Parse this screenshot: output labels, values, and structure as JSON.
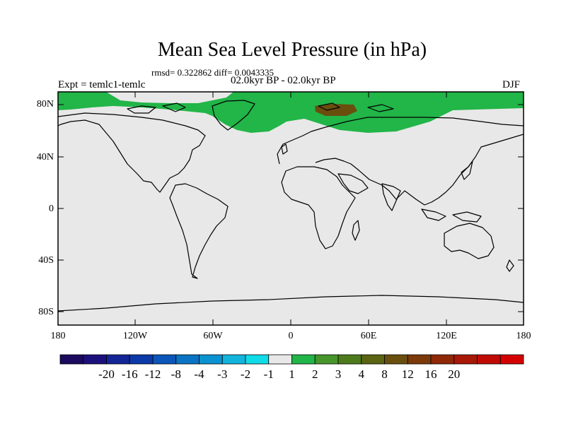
{
  "title": "Mean Sea Level Pressure (in hPa)",
  "stats": "rmsd= 0.322862 diff= 0.0043335",
  "expt": "Expt = temlc1-temlc",
  "period": "02.0kyr BP - 02.0kyr BP",
  "season": "DJF",
  "lat_labels": [
    "80N",
    "40N",
    "0",
    "40S",
    "80S"
  ],
  "lon_labels": [
    "180",
    "120W",
    "60W",
    "0",
    "60E",
    "120E",
    "180"
  ],
  "colorbar": {
    "colors": [
      "#1b0a5e",
      "#1c107c",
      "#142596",
      "#0b3aa8",
      "#0b56b8",
      "#0b73c4",
      "#0b92d0",
      "#12b4dc",
      "#10dce8",
      "#e8e8e8",
      "#22b548",
      "#47962c",
      "#4d7b1c",
      "#5b6413",
      "#6a4e0e",
      "#7c3a0a",
      "#8f2806",
      "#a71806",
      "#c00b04",
      "#d40000"
    ],
    "labels": [
      "-20",
      "-16",
      "-12",
      "-8",
      "-4",
      "-3",
      "-2",
      "-1",
      "1",
      "2",
      "3",
      "4",
      "8",
      "12",
      "16",
      "20"
    ]
  },
  "colors": {
    "background_field": "#e8e8e8",
    "positive_anomaly": "#22b548",
    "max_anomaly": "#6a4e0e"
  }
}
